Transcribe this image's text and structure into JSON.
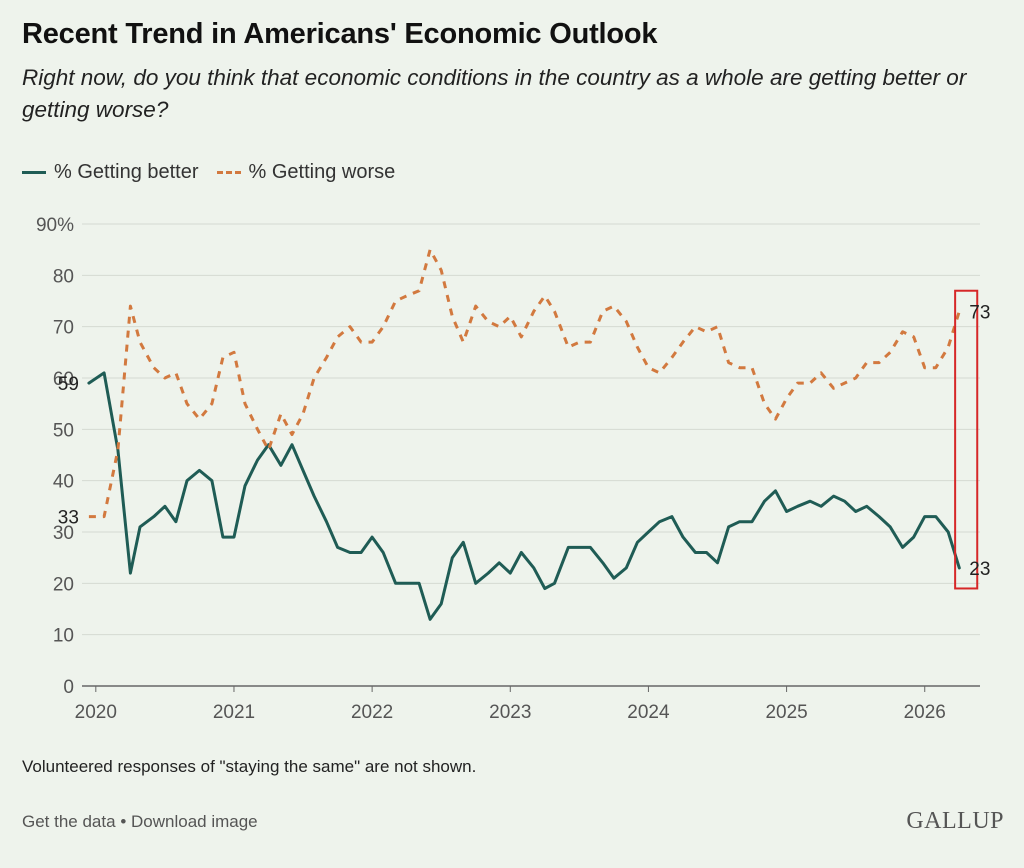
{
  "title": "Recent Trend in Americans' Economic Outlook",
  "subtitle": "Right now, do you think that economic conditions in the country as a whole are getting better or getting worse?",
  "legend": {
    "better_label": "% Getting better",
    "worse_label": "% Getting worse"
  },
  "note": "Volunteered responses of \"staying the same\" are not shown.",
  "footer": {
    "get_data": "Get the data",
    "separator": "•",
    "download": "Download image",
    "logo": "GALLUP"
  },
  "colors": {
    "better": "#1f5c55",
    "worse": "#d2793f",
    "highlight": "#d62728",
    "background": "#eef3ec"
  },
  "chart_data": {
    "type": "line",
    "title": "Recent Trend in Americans' Economic Outlook",
    "ylim": [
      0,
      90
    ],
    "xlim": [
      2019.9,
      2026.4
    ],
    "y_ticks": [
      0,
      10,
      20,
      30,
      40,
      50,
      60,
      70,
      80,
      90
    ],
    "y_tick_labels": [
      "0",
      "10",
      "20",
      "30",
      "40",
      "50",
      "60",
      "70",
      "80",
      "90%"
    ],
    "x_ticks": [
      2020,
      2021,
      2022,
      2023,
      2024,
      2025,
      2026
    ],
    "x_tick_labels": [
      "2020",
      "2021",
      "2022",
      "2023",
      "2024",
      "2025",
      "2026"
    ],
    "grid": "horizontal",
    "legend_position": "top-left",
    "series": [
      {
        "name": "% Getting better",
        "style": "solid",
        "points": [
          [
            2019.95,
            59
          ],
          [
            2020.06,
            61
          ],
          [
            2020.16,
            46
          ],
          [
            2020.25,
            22
          ],
          [
            2020.32,
            31
          ],
          [
            2020.42,
            33
          ],
          [
            2020.5,
            35
          ],
          [
            2020.58,
            32
          ],
          [
            2020.66,
            40
          ],
          [
            2020.75,
            42
          ],
          [
            2020.84,
            40
          ],
          [
            2020.92,
            29
          ],
          [
            2021.0,
            29
          ],
          [
            2021.08,
            39
          ],
          [
            2021.17,
            44
          ],
          [
            2021.25,
            47
          ],
          [
            2021.34,
            43
          ],
          [
            2021.42,
            47
          ],
          [
            2021.5,
            42
          ],
          [
            2021.58,
            37
          ],
          [
            2021.67,
            32
          ],
          [
            2021.75,
            27
          ],
          [
            2021.84,
            26
          ],
          [
            2021.92,
            26
          ],
          [
            2022.0,
            29
          ],
          [
            2022.08,
            26
          ],
          [
            2022.17,
            20
          ],
          [
            2022.25,
            20
          ],
          [
            2022.34,
            20
          ],
          [
            2022.42,
            13
          ],
          [
            2022.5,
            16
          ],
          [
            2022.58,
            25
          ],
          [
            2022.66,
            28
          ],
          [
            2022.75,
            20
          ],
          [
            2022.84,
            22
          ],
          [
            2022.92,
            24
          ],
          [
            2023.0,
            22
          ],
          [
            2023.08,
            26
          ],
          [
            2023.17,
            23
          ],
          [
            2023.25,
            19
          ],
          [
            2023.32,
            20
          ],
          [
            2023.42,
            27
          ],
          [
            2023.5,
            27
          ],
          [
            2023.58,
            27
          ],
          [
            2023.67,
            24
          ],
          [
            2023.75,
            21
          ],
          [
            2023.84,
            23
          ],
          [
            2023.92,
            28
          ],
          [
            2024.0,
            30
          ],
          [
            2024.08,
            32
          ],
          [
            2024.17,
            33
          ],
          [
            2024.25,
            29
          ],
          [
            2024.34,
            26
          ],
          [
            2024.42,
            26
          ],
          [
            2024.5,
            24
          ],
          [
            2024.58,
            31
          ],
          [
            2024.66,
            32
          ],
          [
            2024.75,
            32
          ],
          [
            2024.84,
            36
          ],
          [
            2024.92,
            38
          ],
          [
            2025.0,
            34
          ],
          [
            2025.08,
            35
          ],
          [
            2025.17,
            36
          ],
          [
            2025.25,
            35
          ],
          [
            2025.34,
            37
          ],
          [
            2025.42,
            36
          ],
          [
            2025.5,
            34
          ],
          [
            2025.58,
            35
          ],
          [
            2025.67,
            33
          ],
          [
            2025.75,
            31
          ],
          [
            2025.84,
            27
          ],
          [
            2025.92,
            29
          ],
          [
            2026.0,
            33
          ],
          [
            2026.08,
            33
          ],
          [
            2026.17,
            30
          ],
          [
            2026.25,
            23
          ]
        ]
      },
      {
        "name": "% Getting worse",
        "style": "dashed",
        "points": [
          [
            2019.95,
            33
          ],
          [
            2020.06,
            33
          ],
          [
            2020.16,
            46
          ],
          [
            2020.25,
            74
          ],
          [
            2020.32,
            67
          ],
          [
            2020.42,
            62
          ],
          [
            2020.5,
            60
          ],
          [
            2020.58,
            61
          ],
          [
            2020.66,
            55
          ],
          [
            2020.75,
            52
          ],
          [
            2020.84,
            55
          ],
          [
            2020.92,
            64
          ],
          [
            2021.0,
            65
          ],
          [
            2021.08,
            55
          ],
          [
            2021.17,
            50
          ],
          [
            2021.25,
            46
          ],
          [
            2021.34,
            53
          ],
          [
            2021.42,
            49
          ],
          [
            2021.5,
            53
          ],
          [
            2021.58,
            60
          ],
          [
            2021.67,
            64
          ],
          [
            2021.75,
            68
          ],
          [
            2021.84,
            70
          ],
          [
            2021.92,
            67
          ],
          [
            2022.0,
            67
          ],
          [
            2022.08,
            70
          ],
          [
            2022.17,
            75
          ],
          [
            2022.25,
            76
          ],
          [
            2022.34,
            77
          ],
          [
            2022.42,
            85
          ],
          [
            2022.5,
            81
          ],
          [
            2022.58,
            72
          ],
          [
            2022.66,
            67
          ],
          [
            2022.75,
            74
          ],
          [
            2022.84,
            71
          ],
          [
            2022.92,
            70
          ],
          [
            2023.0,
            72
          ],
          [
            2023.08,
            68
          ],
          [
            2023.17,
            73
          ],
          [
            2023.25,
            76
          ],
          [
            2023.32,
            73
          ],
          [
            2023.42,
            66
          ],
          [
            2023.5,
            67
          ],
          [
            2023.58,
            67
          ],
          [
            2023.67,
            73
          ],
          [
            2023.75,
            74
          ],
          [
            2023.84,
            71
          ],
          [
            2023.92,
            66
          ],
          [
            2024.0,
            62
          ],
          [
            2024.08,
            61
          ],
          [
            2024.17,
            64
          ],
          [
            2024.25,
            67
          ],
          [
            2024.34,
            70
          ],
          [
            2024.42,
            69
          ],
          [
            2024.5,
            70
          ],
          [
            2024.58,
            63
          ],
          [
            2024.66,
            62
          ],
          [
            2024.75,
            62
          ],
          [
            2024.84,
            55
          ],
          [
            2024.92,
            52
          ],
          [
            2025.0,
            56
          ],
          [
            2025.08,
            59
          ],
          [
            2025.17,
            59
          ],
          [
            2025.25,
            61
          ],
          [
            2025.34,
            58
          ],
          [
            2025.42,
            59
          ],
          [
            2025.5,
            60
          ],
          [
            2025.58,
            63
          ],
          [
            2025.67,
            63
          ],
          [
            2025.75,
            65
          ],
          [
            2025.84,
            69
          ],
          [
            2025.92,
            68
          ],
          [
            2026.0,
            62
          ],
          [
            2026.08,
            62
          ],
          [
            2026.17,
            66
          ],
          [
            2026.25,
            73
          ]
        ]
      }
    ],
    "annotations": [
      {
        "series": 0,
        "point": "first",
        "text": "59",
        "side": "left"
      },
      {
        "series": 1,
        "point": "first",
        "text": "33",
        "side": "left"
      },
      {
        "series": 1,
        "point": "last",
        "text": "73",
        "side": "right"
      },
      {
        "series": 0,
        "point": "last",
        "text": "23",
        "side": "right"
      }
    ],
    "highlight_range": {
      "x": [
        2026.22,
        2026.38
      ],
      "y": [
        19,
        77
      ]
    }
  }
}
